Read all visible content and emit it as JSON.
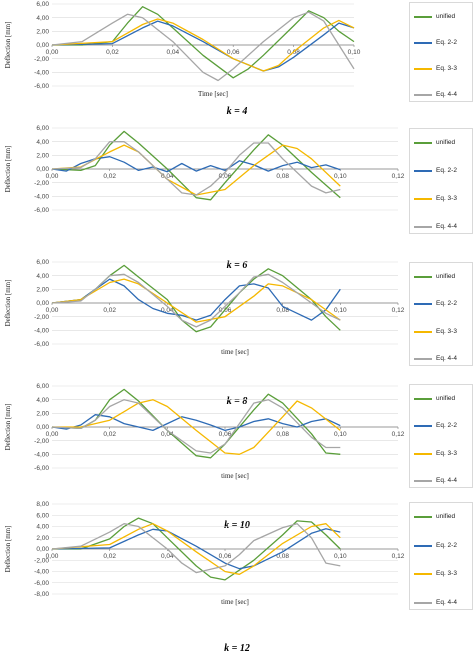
{
  "chart_data": [
    {
      "type": "line",
      "caption": "k = 4",
      "xlabel": "Time [sec]",
      "ylabel": "Deflection [mm]",
      "xlim": [
        0,
        0.1
      ],
      "ylim": [
        -6,
        6
      ],
      "xticks": [
        "0,00",
        "0,02",
        "0,04",
        "0,06",
        "0,08",
        "0,10"
      ],
      "yticks": [
        "6,00",
        "4,00",
        "2,00",
        "0,00",
        "-2,00",
        "-4,00",
        "-6,00"
      ],
      "legend_position": "right",
      "series": [
        {
          "name": "unified",
          "color": "#5a9e3a",
          "x": [
            0,
            0.01,
            0.02,
            0.025,
            0.03,
            0.035,
            0.04,
            0.05,
            0.06,
            0.065,
            0.07,
            0.08,
            0.085,
            0.09,
            0.095,
            0.1
          ],
          "y": [
            0,
            0,
            0.5,
            3.2,
            5.6,
            4.5,
            2.5,
            -1.5,
            -4.8,
            -3.5,
            -1.5,
            2.8,
            5.0,
            4.0,
            2.0,
            0.5
          ]
        },
        {
          "name": "Eq. 2-2",
          "color": "#2e6bb5",
          "x": [
            0,
            0.02,
            0.03,
            0.035,
            0.04,
            0.05,
            0.06,
            0.07,
            0.075,
            0.08,
            0.09,
            0.095,
            0.1
          ],
          "y": [
            0,
            0.2,
            2.5,
            3.5,
            2.8,
            0.5,
            -2.0,
            -3.8,
            -3.2,
            -1.8,
            1.5,
            3.2,
            2.5
          ]
        },
        {
          "name": "Eq. 3-3",
          "color": "#f5b800",
          "x": [
            0,
            0.02,
            0.03,
            0.035,
            0.04,
            0.05,
            0.06,
            0.07,
            0.075,
            0.08,
            0.09,
            0.095,
            0.1
          ],
          "y": [
            0,
            0.5,
            3.0,
            3.8,
            3.2,
            0.8,
            -2.0,
            -3.8,
            -3.0,
            -1.0,
            2.5,
            3.6,
            2.5
          ]
        },
        {
          "name": "Eq. 4-4",
          "color": "#a6a6a6",
          "x": [
            0,
            0.01,
            0.02,
            0.025,
            0.03,
            0.04,
            0.05,
            0.055,
            0.06,
            0.07,
            0.08,
            0.085,
            0.09,
            0.1
          ],
          "y": [
            0,
            0.5,
            3.2,
            4.5,
            4.0,
            0.5,
            -4.0,
            -5.2,
            -3.5,
            0.5,
            4.0,
            4.8,
            3.5,
            -3.5
          ]
        }
      ]
    },
    {
      "type": "line",
      "caption": "k = 6",
      "xlabel": "",
      "ylabel": "Deflection [mm]",
      "xlim": [
        0,
        0.12
      ],
      "ylim": [
        -6,
        6
      ],
      "xticks": [
        "0,00",
        "0,02",
        "0,04",
        "0,06",
        "0,08",
        "0,10",
        "0,12"
      ],
      "yticks": [
        "6,00",
        "4,00",
        "2,00",
        "0,00",
        "-2,00",
        "-4,00",
        "-6,00"
      ],
      "legend_position": "right",
      "series": [
        {
          "name": "unified",
          "color": "#5a9e3a",
          "x": [
            0,
            0.01,
            0.015,
            0.02,
            0.025,
            0.03,
            0.04,
            0.05,
            0.055,
            0.06,
            0.07,
            0.075,
            0.08,
            0.09,
            0.1
          ],
          "y": [
            0,
            -0.2,
            0.5,
            3.5,
            5.5,
            3.8,
            0.0,
            -4.2,
            -4.5,
            -2.0,
            2.8,
            5.0,
            3.5,
            -0.5,
            -4.2
          ]
        },
        {
          "name": "Eq. 2-2",
          "color": "#2e6bb5",
          "x": [
            0,
            0.005,
            0.01,
            0.015,
            0.02,
            0.025,
            0.03,
            0.035,
            0.04,
            0.045,
            0.05,
            0.055,
            0.06,
            0.065,
            0.07,
            0.075,
            0.08,
            0.085,
            0.09,
            0.095,
            0.1
          ],
          "y": [
            0,
            -0.3,
            0.8,
            1.5,
            1.8,
            1.0,
            -0.2,
            0.3,
            -0.4,
            0.8,
            -0.3,
            0.5,
            -0.2,
            1.2,
            0.6,
            -0.3,
            0.5,
            1.0,
            0.2,
            0.6,
            -0.1
          ]
        },
        {
          "name": "Eq. 3-3",
          "color": "#f5b800",
          "x": [
            0,
            0.01,
            0.02,
            0.025,
            0.03,
            0.04,
            0.05,
            0.06,
            0.07,
            0.075,
            0.08,
            0.085,
            0.09,
            0.1
          ],
          "y": [
            0,
            0.3,
            2.5,
            3.5,
            2.5,
            -1.5,
            -3.8,
            -3.0,
            0.5,
            2.0,
            3.5,
            3.0,
            1.5,
            -2.5
          ]
        },
        {
          "name": "Eq. 4-4",
          "color": "#a6a6a6",
          "x": [
            0,
            0.01,
            0.015,
            0.02,
            0.025,
            0.03,
            0.04,
            0.045,
            0.05,
            0.055,
            0.06,
            0.065,
            0.07,
            0.075,
            0.08,
            0.09,
            0.095,
            0.1
          ],
          "y": [
            0,
            0.2,
            1.5,
            4.0,
            4.0,
            2.5,
            -1.5,
            -3.5,
            -3.8,
            -2.5,
            -0.5,
            2.0,
            3.8,
            3.8,
            1.5,
            -2.5,
            -3.5,
            -3.0
          ]
        }
      ]
    },
    {
      "type": "line",
      "caption": "k = 8",
      "xlabel": "time [sec]",
      "ylabel": "Deflection [mm]",
      "xlim": [
        0,
        0.12
      ],
      "ylim": [
        -6,
        6
      ],
      "xticks": [
        "0,00",
        "0,02",
        "0,04",
        "0,06",
        "0,08",
        "0,10",
        "0,12"
      ],
      "yticks": [
        "6,00",
        "4,00",
        "2,00",
        "0,00",
        "-2,00",
        "-4,00",
        "-6,00"
      ],
      "legend_position": "right",
      "series": [
        {
          "name": "unified",
          "color": "#5a9e3a",
          "x": [
            0,
            0.01,
            0.015,
            0.02,
            0.025,
            0.03,
            0.04,
            0.045,
            0.05,
            0.055,
            0.06,
            0.065,
            0.07,
            0.075,
            0.08,
            0.09,
            0.095,
            0.1
          ],
          "y": [
            0,
            0.5,
            2.0,
            4.0,
            5.5,
            3.8,
            0.5,
            -2.5,
            -4.2,
            -3.5,
            -1.0,
            1.5,
            3.5,
            5.0,
            4.0,
            0.5,
            -2.0,
            -4.0
          ]
        },
        {
          "name": "Eq. 2-2",
          "color": "#2e6bb5",
          "x": [
            0,
            0.01,
            0.015,
            0.02,
            0.025,
            0.03,
            0.035,
            0.04,
            0.045,
            0.05,
            0.055,
            0.06,
            0.065,
            0.07,
            0.075,
            0.08,
            0.085,
            0.09,
            0.095,
            0.1
          ],
          "y": [
            0,
            0.5,
            2.0,
            3.5,
            2.5,
            0.5,
            -0.8,
            -1.5,
            -1.8,
            -2.5,
            -1.8,
            0.5,
            2.5,
            2.8,
            2.2,
            -0.5,
            -1.5,
            -2.5,
            -1.0,
            2.0
          ]
        },
        {
          "name": "Eq. 3-3",
          "color": "#f5b800",
          "x": [
            0,
            0.01,
            0.02,
            0.025,
            0.03,
            0.04,
            0.05,
            0.06,
            0.07,
            0.075,
            0.08,
            0.09,
            0.1
          ],
          "y": [
            0,
            0.5,
            3.0,
            3.5,
            2.8,
            0.0,
            -2.8,
            -2.0,
            1.0,
            2.8,
            2.5,
            0.5,
            -2.5
          ]
        },
        {
          "name": "Eq. 4-4",
          "color": "#a6a6a6",
          "x": [
            0,
            0.01,
            0.015,
            0.02,
            0.025,
            0.03,
            0.04,
            0.045,
            0.05,
            0.055,
            0.06,
            0.065,
            0.07,
            0.075,
            0.08,
            0.09,
            0.095,
            0.1
          ],
          "y": [
            0,
            0.3,
            2.0,
            4.0,
            4.2,
            3.0,
            -0.5,
            -2.5,
            -3.5,
            -2.5,
            -0.5,
            1.5,
            3.8,
            4.2,
            3.0,
            0.0,
            -1.5,
            -2.5
          ]
        }
      ]
    },
    {
      "type": "line",
      "caption": "k = 10",
      "xlabel": "time [sec]",
      "ylabel": "Deflection [mm]",
      "xlim": [
        0,
        0.12
      ],
      "ylim": [
        -6,
        6
      ],
      "xticks": [
        "0,00",
        "0,02",
        "0,04",
        "0,06",
        "0,08",
        "0,10",
        "0,12"
      ],
      "yticks": [
        "6,00",
        "4,00",
        "2,00",
        "0,00",
        "-2,00",
        "-4,00",
        "-6,00"
      ],
      "legend_position": "right",
      "series": [
        {
          "name": "unified",
          "color": "#5a9e3a",
          "x": [
            0,
            0.01,
            0.015,
            0.02,
            0.025,
            0.03,
            0.04,
            0.05,
            0.055,
            0.06,
            0.07,
            0.075,
            0.08,
            0.09,
            0.095,
            0.1
          ],
          "y": [
            0,
            -0.2,
            1.0,
            4.0,
            5.5,
            3.8,
            -0.5,
            -4.2,
            -4.5,
            -2.5,
            2.5,
            4.8,
            3.5,
            -1.0,
            -3.8,
            -4.0
          ]
        },
        {
          "name": "Eq. 2-2",
          "color": "#2e6bb5",
          "x": [
            0,
            0.005,
            0.01,
            0.015,
            0.02,
            0.025,
            0.03,
            0.035,
            0.04,
            0.045,
            0.05,
            0.055,
            0.06,
            0.065,
            0.07,
            0.075,
            0.08,
            0.085,
            0.09,
            0.095,
            0.1
          ],
          "y": [
            0,
            -0.3,
            0.3,
            1.8,
            1.5,
            0.5,
            0.0,
            -0.5,
            0.5,
            1.5,
            1.0,
            0.3,
            -0.5,
            0.0,
            0.8,
            1.2,
            0.5,
            0.0,
            0.8,
            1.2,
            0.2
          ]
        },
        {
          "name": "Eq. 3-3",
          "color": "#f5b800",
          "x": [
            0,
            0.01,
            0.02,
            0.03,
            0.035,
            0.04,
            0.05,
            0.06,
            0.065,
            0.07,
            0.08,
            0.085,
            0.09,
            0.1
          ],
          "y": [
            0,
            0.0,
            1.0,
            3.5,
            4.0,
            3.0,
            -0.5,
            -3.8,
            -4.0,
            -3.0,
            1.5,
            3.8,
            2.8,
            -0.5
          ]
        },
        {
          "name": "Eq. 4-4",
          "color": "#a6a6a6",
          "x": [
            0,
            0.01,
            0.015,
            0.02,
            0.025,
            0.03,
            0.035,
            0.04,
            0.05,
            0.055,
            0.06,
            0.065,
            0.07,
            0.075,
            0.08,
            0.09,
            0.095,
            0.1
          ],
          "y": [
            0,
            -0.2,
            1.0,
            3.0,
            4.0,
            3.5,
            1.5,
            -0.5,
            -3.5,
            -3.8,
            -2.5,
            0.5,
            3.5,
            4.0,
            2.8,
            -1.5,
            -3.0,
            -3.0
          ]
        }
      ]
    },
    {
      "type": "line",
      "caption": "k = 12",
      "xlabel": "time [sec]",
      "ylabel": "Deflection [mm]",
      "xlim": [
        0,
        0.12
      ],
      "ylim": [
        -8,
        8
      ],
      "xticks": [
        "0,00",
        "0,02",
        "0,04",
        "0,06",
        "0,08",
        "0,10",
        "0,12"
      ],
      "yticks": [
        "8,00",
        "6,00",
        "4,00",
        "2,00",
        "0,00",
        "-2,00",
        "-4,00",
        "-6,00",
        "-8,00"
      ],
      "legend_position": "right",
      "series": [
        {
          "name": "unified",
          "color": "#5a9e3a",
          "x": [
            0,
            0.01,
            0.02,
            0.025,
            0.03,
            0.035,
            0.04,
            0.05,
            0.055,
            0.06,
            0.07,
            0.08,
            0.085,
            0.09,
            0.095,
            0.1
          ],
          "y": [
            0,
            0.0,
            1.8,
            4.0,
            5.5,
            4.5,
            2.0,
            -3.0,
            -5.0,
            -5.5,
            -2.0,
            2.5,
            5.0,
            4.8,
            2.5,
            0.0
          ]
        },
        {
          "name": "Eq. 2-2",
          "color": "#2e6bb5",
          "x": [
            0,
            0.02,
            0.03,
            0.035,
            0.04,
            0.05,
            0.06,
            0.065,
            0.07,
            0.08,
            0.09,
            0.095,
            0.1
          ],
          "y": [
            0,
            0.2,
            2.5,
            3.5,
            3.2,
            0.5,
            -2.5,
            -3.5,
            -3.0,
            -0.5,
            2.8,
            3.6,
            3.0
          ]
        },
        {
          "name": "Eq. 3-3",
          "color": "#f5b800",
          "x": [
            0,
            0.02,
            0.03,
            0.035,
            0.04,
            0.05,
            0.06,
            0.065,
            0.07,
            0.08,
            0.09,
            0.095,
            0.1
          ],
          "y": [
            0,
            0.8,
            3.5,
            4.5,
            3.2,
            -0.5,
            -4.0,
            -4.5,
            -3.0,
            1.0,
            4.0,
            4.5,
            2.0
          ]
        },
        {
          "name": "Eq. 4-4",
          "color": "#a6a6a6",
          "x": [
            0,
            0.01,
            0.02,
            0.025,
            0.03,
            0.04,
            0.045,
            0.05,
            0.06,
            0.065,
            0.07,
            0.08,
            0.085,
            0.09,
            0.095,
            0.1
          ],
          "y": [
            0,
            0.5,
            3.0,
            4.5,
            4.0,
            0.0,
            -2.5,
            -4.2,
            -3.0,
            -1.0,
            1.5,
            3.8,
            4.5,
            2.0,
            -2.5,
            -3.0
          ]
        }
      ]
    }
  ]
}
